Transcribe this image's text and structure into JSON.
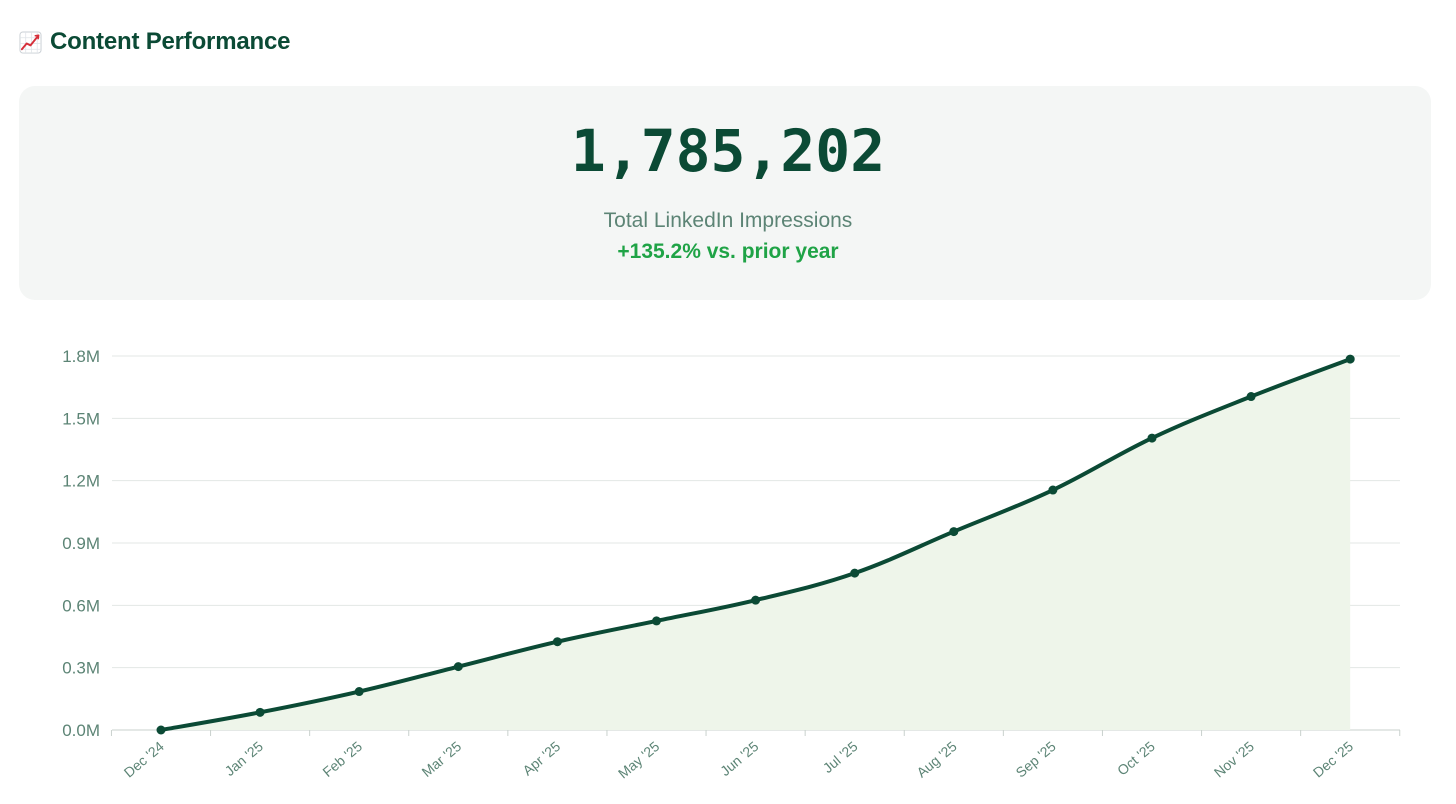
{
  "header": {
    "icon": "chart-increasing-icon",
    "title": "Content Performance"
  },
  "kpi": {
    "value": "1,785,202",
    "label": "Total LinkedIn Impressions",
    "change": "+135.2% vs. prior year"
  },
  "colors": {
    "primary": "#0b4a35",
    "muted": "#5c8475",
    "positive": "#1fa346",
    "area_fill": "#eef5ea",
    "card_bg": "#f4f6f5",
    "grid": "#e3e7e5"
  },
  "chart_data": {
    "type": "area",
    "x": [
      "Dec '24",
      "Jan '25",
      "Feb '25",
      "Mar '25",
      "Apr '25",
      "May '25",
      "Jun '25",
      "Jul '25",
      "Aug '25",
      "Sep '25",
      "Oct '25",
      "Nov '25",
      "Dec '25"
    ],
    "series": [
      {
        "values": [
          0,
          85000,
          185000,
          305000,
          425000,
          525000,
          625000,
          755000,
          955000,
          1155000,
          1405000,
          1605000,
          1785202
        ]
      }
    ],
    "yticks": [
      0,
      300000,
      600000,
      900000,
      1200000,
      1500000,
      1800000
    ],
    "ytick_labels": [
      "0.0M",
      "0.3M",
      "0.6M",
      "0.9M",
      "1.2M",
      "1.5M",
      "1.8M"
    ],
    "ylim": [
      0,
      1800000
    ],
    "grid": true,
    "legend": "none",
    "title": "",
    "xlabel": "",
    "ylabel": ""
  }
}
